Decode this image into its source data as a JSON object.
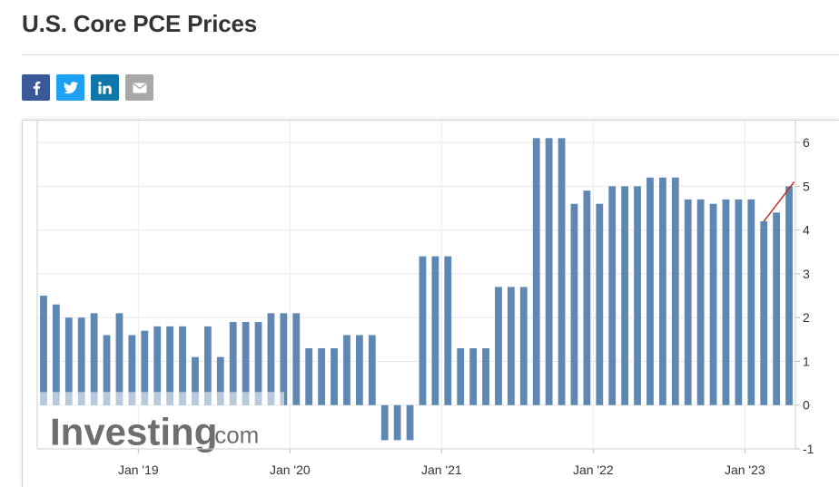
{
  "page": {
    "title": "U.S. Core PCE Prices"
  },
  "share": [
    {
      "name": "facebook-share-button",
      "icon": "facebook-icon",
      "color": "#3b5998",
      "glyph": "f"
    },
    {
      "name": "twitter-share-button",
      "icon": "twitter-icon",
      "color": "#1da1f2",
      "glyph": "bird"
    },
    {
      "name": "linkedin-share-button",
      "icon": "linkedin-icon",
      "color": "#0e76a8",
      "glyph": "in"
    },
    {
      "name": "email-share-button",
      "icon": "email-icon",
      "color": "#a8a8a8",
      "glyph": "envelope"
    }
  ],
  "watermark": {
    "brand": "Investing",
    "suffix": ".com"
  },
  "chart_data": {
    "type": "bar",
    "series": [
      {
        "color": "#5f87b4",
        "values": [
          2.5,
          2.3,
          2.0,
          2.0,
          2.1,
          1.6,
          2.1,
          1.6,
          1.7,
          1.8,
          1.8,
          1.8,
          1.1,
          1.8,
          1.1,
          1.9,
          1.9,
          1.9,
          2.1,
          2.1,
          2.1,
          1.3,
          1.3,
          1.3,
          1.6,
          1.6,
          1.6,
          -0.8,
          -0.8,
          -0.8,
          3.4,
          3.4,
          3.4,
          1.3,
          1.3,
          1.3,
          2.7,
          2.7,
          2.7,
          6.1,
          6.1,
          6.1,
          4.6,
          4.9,
          4.6,
          5.0,
          5.0,
          5.0,
          5.2,
          5.2,
          5.2,
          4.7,
          4.7,
          4.6,
          4.7,
          4.7,
          4.7,
          4.2,
          4.4,
          5.0
        ]
      }
    ],
    "x_tick_labels": [
      "Jan '19",
      "Jan '20",
      "Jan '21",
      "Jan '22",
      "Jan '23"
    ],
    "x_tick_indices": [
      8,
      20,
      32,
      44,
      56
    ],
    "y_ticks": [
      -1,
      0,
      1,
      2,
      3,
      4,
      5,
      6
    ],
    "ylim": [
      -1,
      6.5
    ],
    "y_axis_side": "right",
    "grid": true,
    "trend_line": {
      "color": "#cc2222",
      "from_index": 57,
      "from_value": 4.2,
      "to_index": 59,
      "to_value": 5.1
    },
    "title": "",
    "xlabel": "",
    "ylabel": ""
  }
}
